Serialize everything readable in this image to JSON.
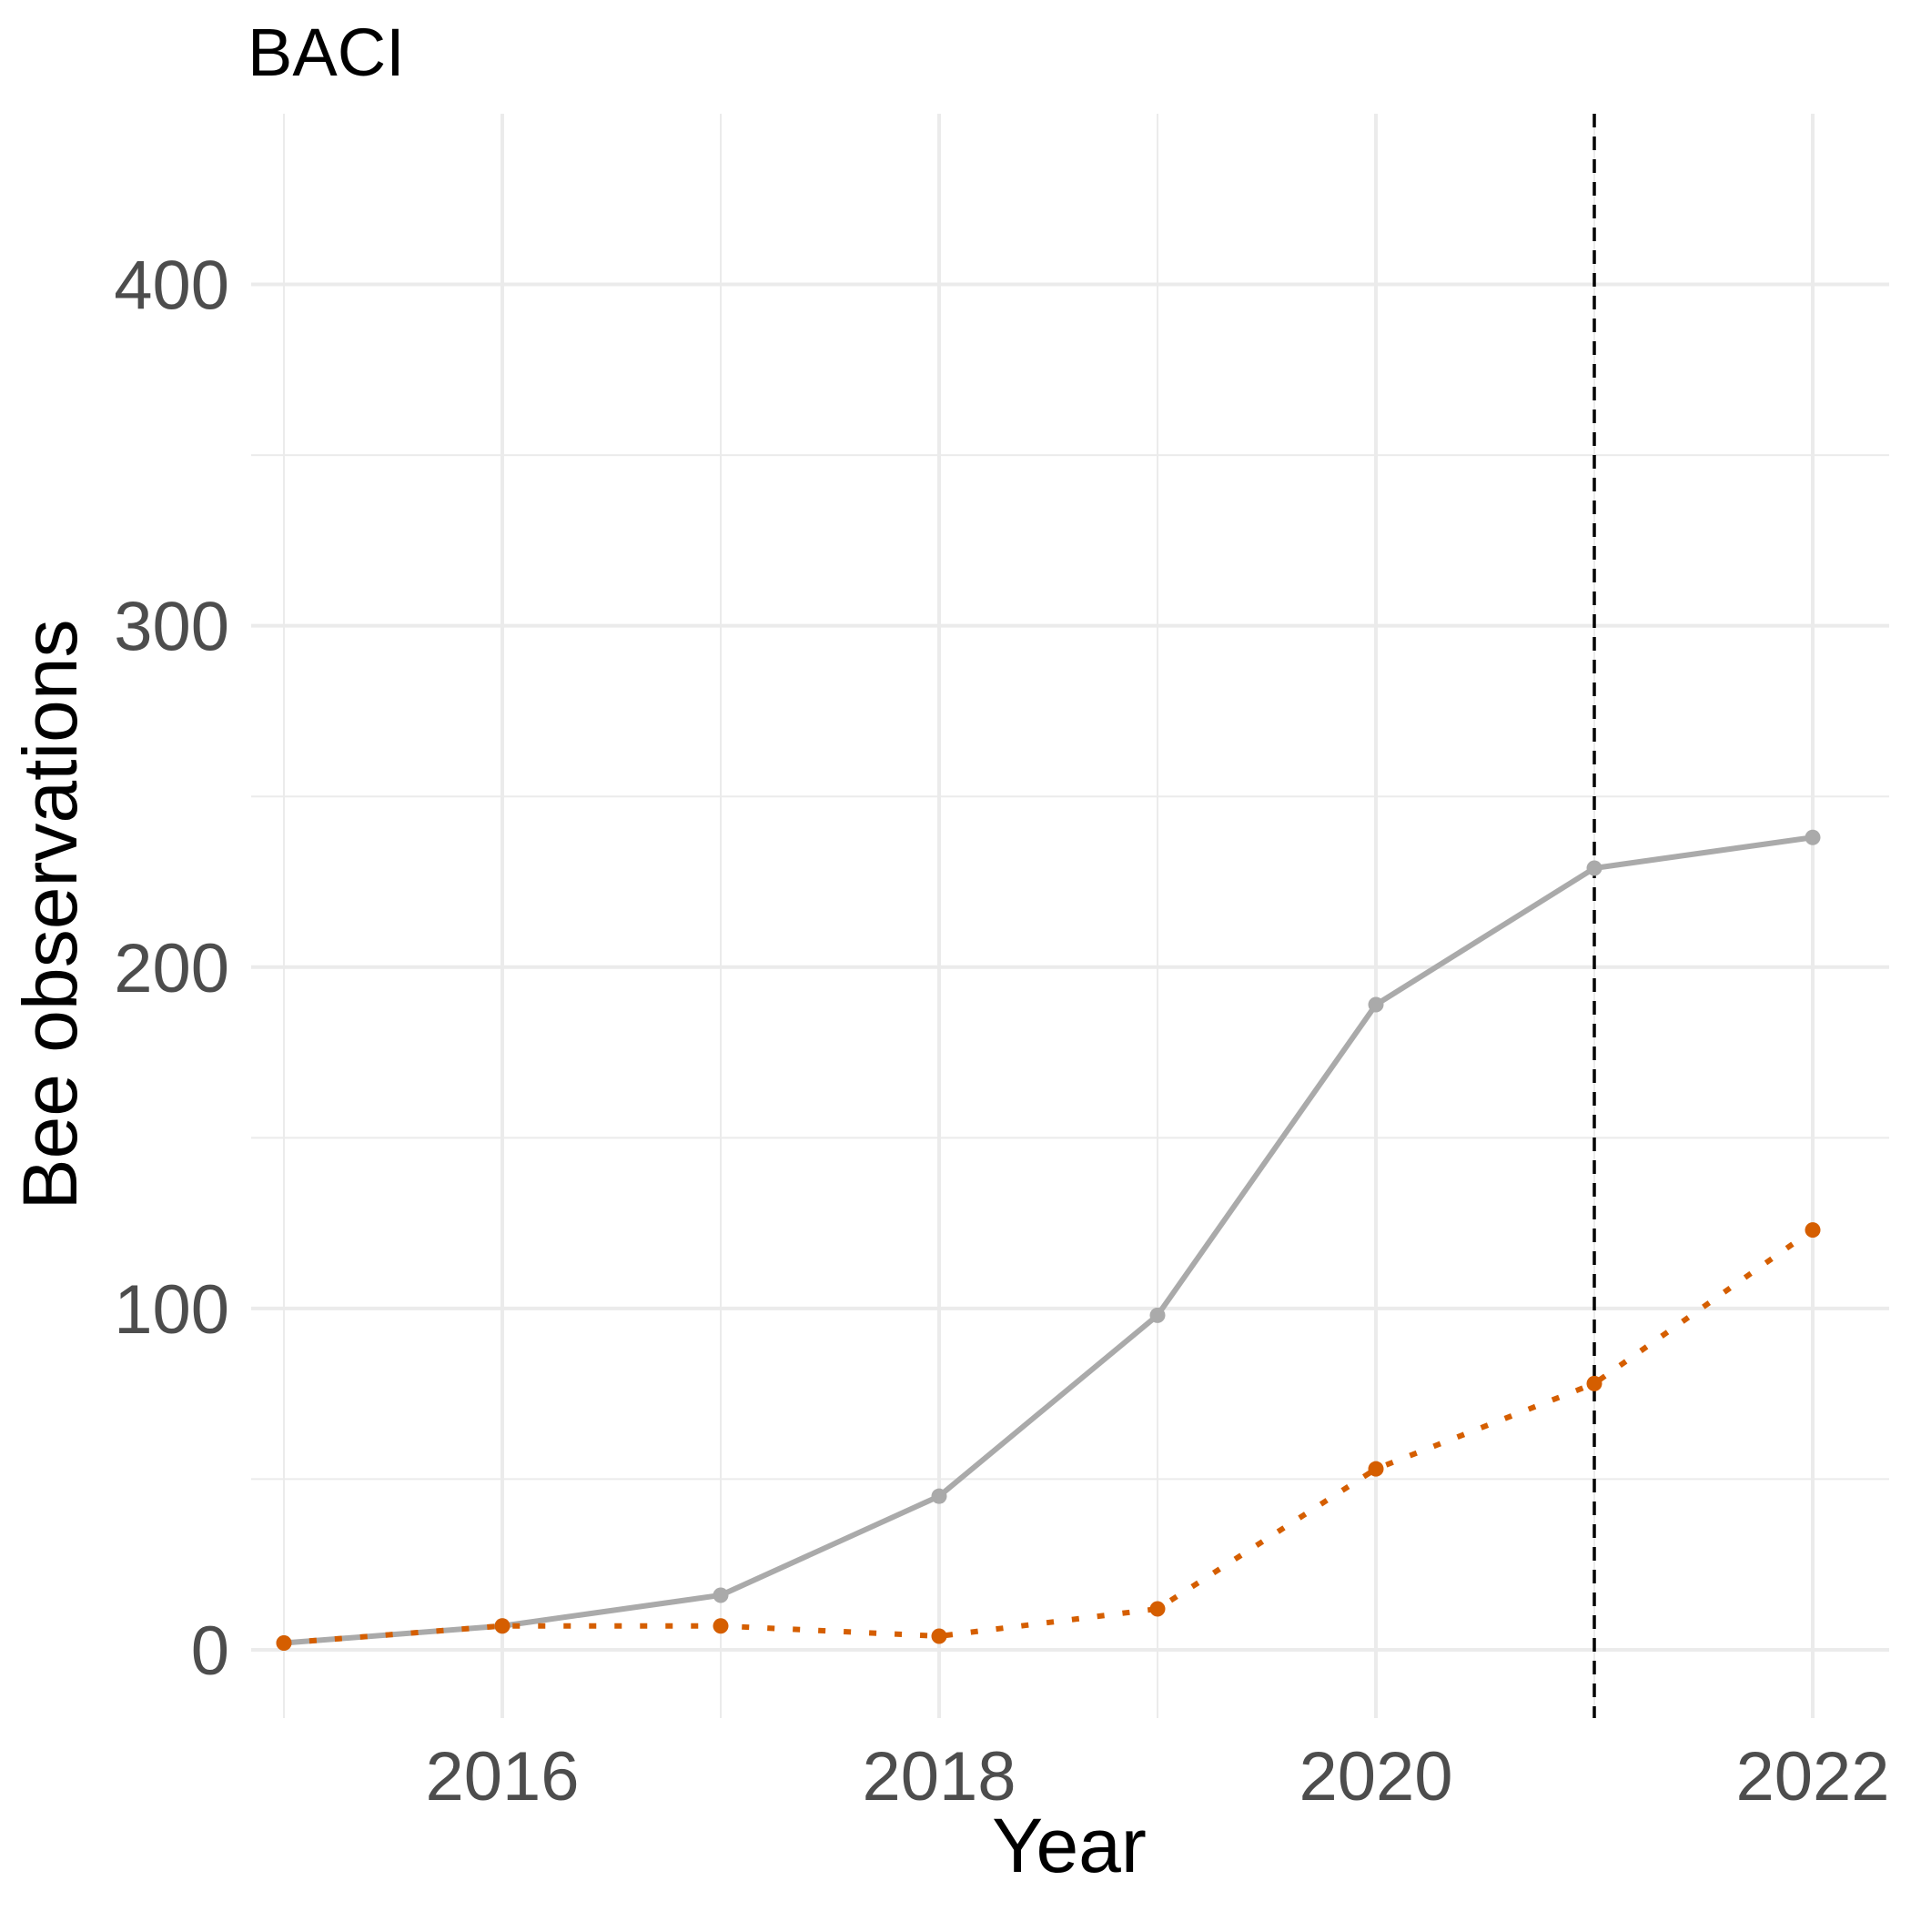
{
  "chart_data": {
    "type": "line",
    "title": "BACI",
    "xlabel": "Year",
    "ylabel": "Bee observations",
    "xlim": [
      2014.85,
      2022.35
    ],
    "ylim": [
      -20,
      450
    ],
    "x_ticks": [
      2016,
      2018,
      2020,
      2022
    ],
    "y_ticks": [
      0,
      100,
      200,
      300,
      400
    ],
    "y_minor_ticks": [
      50,
      150,
      250,
      350
    ],
    "x_minor_ticks": [
      2015,
      2017,
      2019,
      2021
    ],
    "grid": true,
    "legend": "none",
    "series": [
      {
        "color": "#aaaaaa",
        "line_style": "solid",
        "x": [
          2015,
          2016,
          2017,
          2018,
          2019,
          2020,
          2021,
          2022
        ],
        "y": [
          2,
          7,
          16,
          45,
          98,
          189,
          229,
          238
        ]
      },
      {
        "color": "#d55e00",
        "line_style": "dotted",
        "x": [
          2015,
          2016,
          2017,
          2018,
          2019,
          2020,
          2021,
          2022
        ],
        "y": [
          2,
          7,
          7,
          4,
          12,
          53,
          78,
          123
        ]
      }
    ],
    "reference_line": {
      "x": 2021,
      "line_style": "dashed",
      "color": "#000000"
    }
  }
}
